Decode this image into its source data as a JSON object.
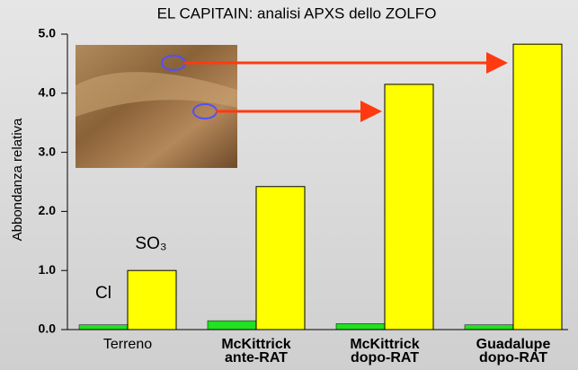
{
  "chart_data": {
    "type": "bar",
    "title": "EL  CAPITAIN: analisi APXS dello ZOLFO",
    "y_label": "Abbondanza relativa",
    "categories": [
      "Terreno",
      "McKittrick\nante-RAT",
      "McKittrick\ndopo-RAT",
      "Guadalupe\ndopo-RAT"
    ],
    "series": [
      {
        "name": "Cl",
        "color": "#22e022",
        "values": [
          0.08,
          0.15,
          0.1,
          0.08
        ]
      },
      {
        "name": "SO₃",
        "color": "#ffff00",
        "values": [
          1.0,
          2.42,
          4.15,
          4.83
        ]
      }
    ],
    "ylim": [
      0,
      5
    ],
    "yticks": [
      {
        "value": 0,
        "label": "0.0"
      },
      {
        "value": 1,
        "label": "1.0"
      },
      {
        "value": 2,
        "label": "2.0"
      },
      {
        "value": 3,
        "label": "3.0"
      },
      {
        "value": 4,
        "label": "4.0"
      },
      {
        "value": 5,
        "label": "5.0"
      }
    ]
  }
}
